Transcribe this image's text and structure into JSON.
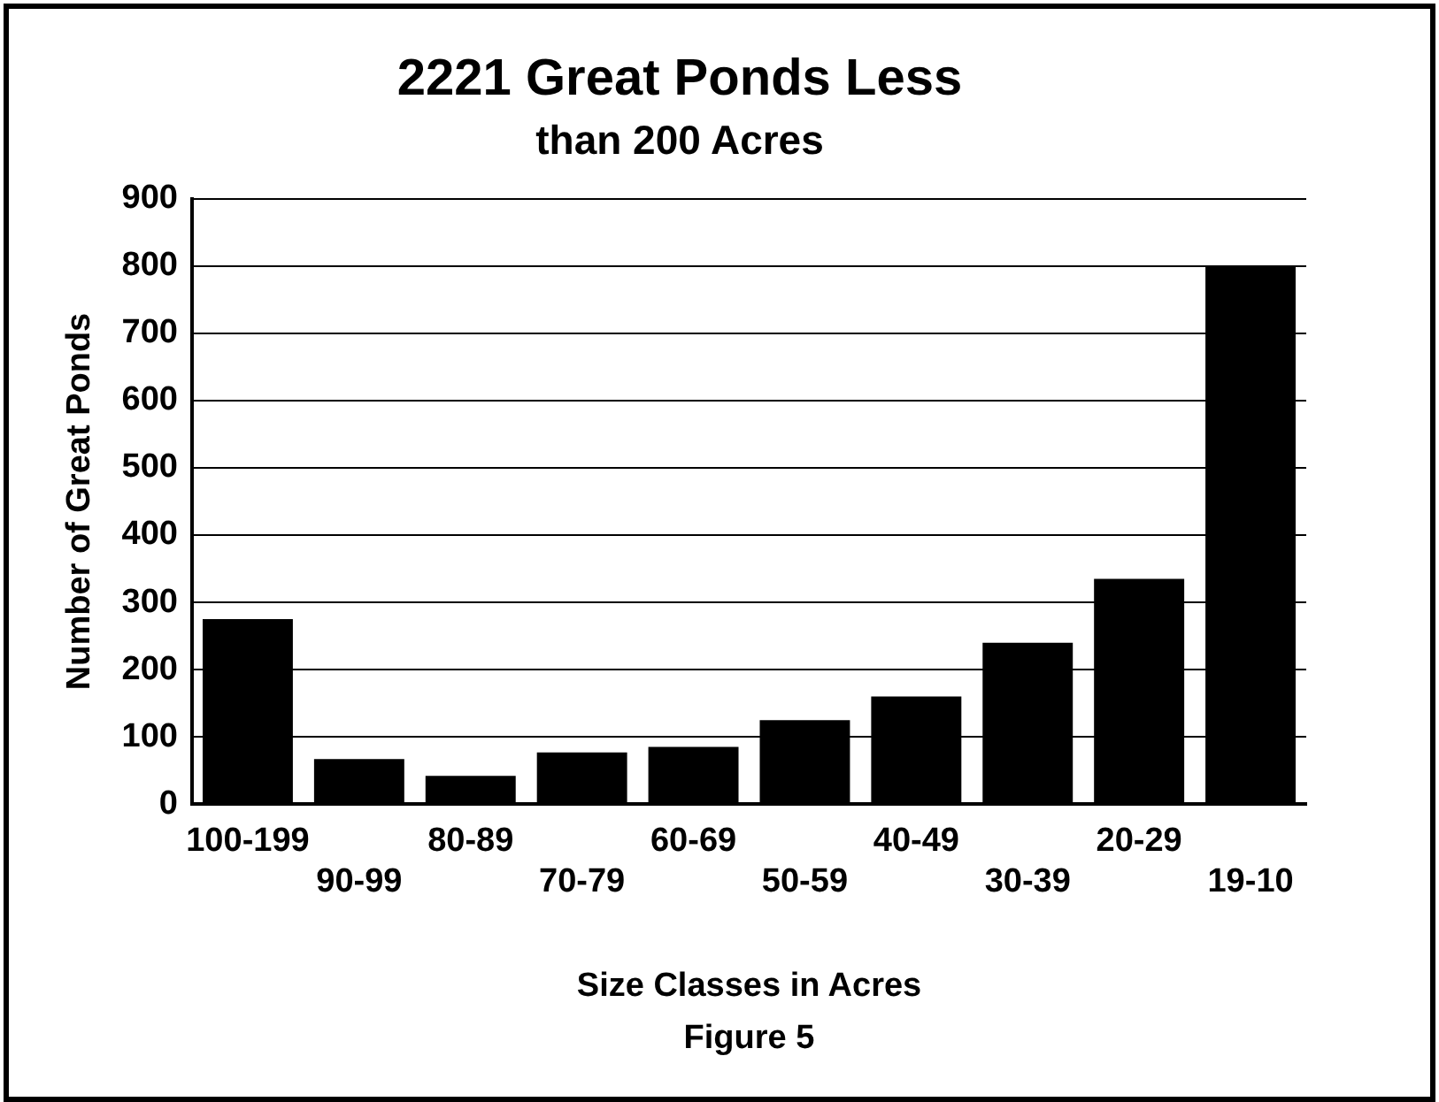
{
  "chart_data": {
    "type": "bar",
    "title": "2221 Great Ponds Less",
    "subtitle": "than 200 Acres",
    "xlabel": "Size Classes in Acres",
    "ylabel": "Number of Great Ponds",
    "annotations": [
      "Figure 5"
    ],
    "categories": [
      "100-199",
      "90-99",
      "80-89",
      "70-79",
      "60-69",
      "50-59",
      "40-49",
      "30-39",
      "20-29",
      "19-10"
    ],
    "values": [
      275,
      67,
      42,
      77,
      85,
      125,
      160,
      240,
      335,
      800
    ],
    "color": "#000000",
    "ylim": [
      0,
      900
    ],
    "yticks": [
      0,
      100,
      200,
      300,
      400,
      500,
      600,
      700,
      800,
      900
    ],
    "grid": "y",
    "legend": false
  }
}
